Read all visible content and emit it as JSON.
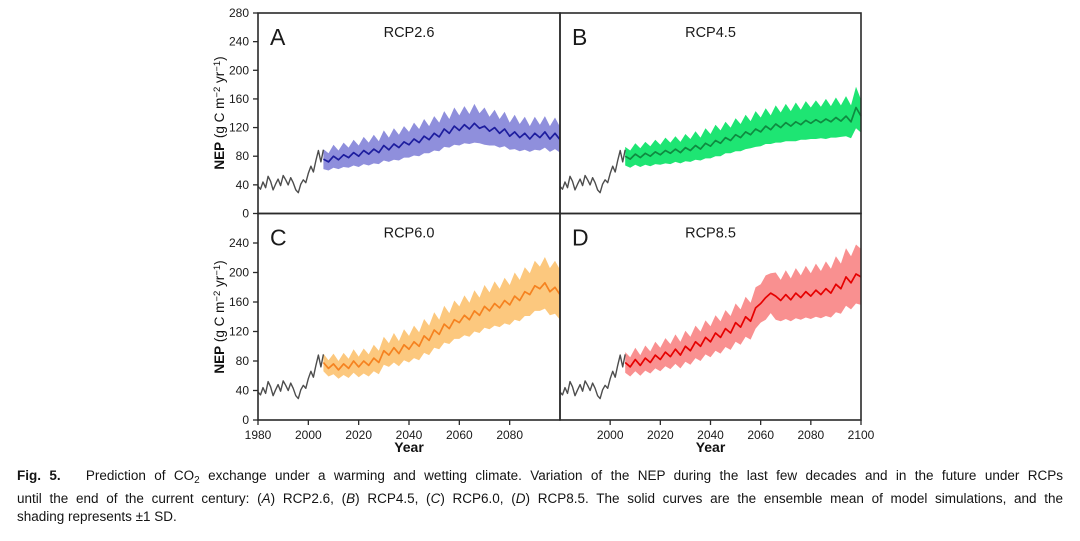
{
  "chart_data": {
    "type": "line",
    "title": "",
    "xlabel": "Year",
    "ylabel": "NEP (g C m−2 yr−1)",
    "ylabel_parts": [
      {
        "t": "NEP",
        "b": true
      },
      {
        "t": " (g C m"
      },
      {
        "t": "−2",
        "sup": true
      },
      {
        "t": " yr"
      },
      {
        "t": "−1",
        "sup": true
      },
      {
        "t": ")"
      }
    ],
    "xlim": [
      1980,
      2100
    ],
    "ylim": [
      0,
      280
    ],
    "x_ticks": [
      1980,
      2000,
      2020,
      2040,
      2060,
      2080,
      2100
    ],
    "y_ticks": [
      0,
      40,
      80,
      120,
      160,
      200,
      240,
      280
    ],
    "grid": false,
    "legend": "none",
    "axis_color": "#2a2a2a",
    "historical": {
      "name": "historical NEP",
      "color": "#4d4d4d",
      "x_start": 1980,
      "x_step": 1,
      "y": [
        38,
        34,
        44,
        36,
        52,
        45,
        33,
        41,
        48,
        39,
        53,
        47,
        40,
        50,
        43,
        33,
        29,
        41,
        47,
        43,
        56,
        66,
        58,
        74,
        88,
        72,
        89
      ]
    },
    "panels": [
      {
        "label": "A",
        "title": "RCP2.6",
        "line_color": "#1d1d9e",
        "band_color": "#8f8fdc",
        "band_meaning": "±1 SD",
        "future": {
          "x_start": 2006,
          "x_step": 2,
          "mean": [
            76,
            72,
            80,
            75,
            82,
            78,
            85,
            80,
            88,
            83,
            90,
            85,
            95,
            89,
            97,
            92,
            100,
            96,
            104,
            99,
            108,
            103,
            112,
            107,
            118,
            112,
            122,
            116,
            124,
            118,
            126,
            119,
            122,
            115,
            120,
            112,
            118,
            108,
            114,
            106,
            112,
            104,
            112,
            106,
            114,
            104,
            112,
            103
          ],
          "sd": [
            14,
            12,
            16,
            13,
            17,
            14,
            18,
            15,
            19,
            16,
            20,
            16,
            21,
            17,
            22,
            18,
            22,
            18,
            23,
            19,
            24,
            19,
            24,
            20,
            25,
            20,
            26,
            21,
            26,
            21,
            27,
            21,
            26,
            20,
            25,
            20,
            24,
            19,
            24,
            19,
            23,
            18,
            23,
            18,
            22,
            18,
            22,
            18
          ]
        }
      },
      {
        "label": "B",
        "title": "RCP4.5",
        "line_color": "#0f8a40",
        "band_color": "#1ee573",
        "band_meaning": "±1 SD",
        "future": {
          "x_start": 2006,
          "x_step": 2,
          "mean": [
            80,
            76,
            83,
            78,
            84,
            80,
            86,
            82,
            88,
            84,
            90,
            85,
            92,
            88,
            95,
            90,
            98,
            94,
            102,
            98,
            106,
            102,
            110,
            106,
            114,
            110,
            118,
            114,
            122,
            117,
            125,
            120,
            127,
            122,
            128,
            124,
            130,
            126,
            131,
            127,
            132,
            128,
            134,
            129,
            136,
            128,
            148,
            136
          ],
          "sd": [
            13,
            12,
            15,
            13,
            16,
            14,
            17,
            14,
            18,
            15,
            18,
            15,
            19,
            16,
            20,
            16,
            21,
            17,
            22,
            18,
            22,
            18,
            23,
            19,
            24,
            19,
            25,
            20,
            25,
            20,
            26,
            21,
            26,
            21,
            27,
            21,
            27,
            22,
            27,
            22,
            28,
            22,
            28,
            22,
            28,
            23,
            29,
            23
          ]
        }
      },
      {
        "label": "C",
        "title": "RCP6.0",
        "line_color": "#f58220",
        "band_color": "#fcc87e",
        "band_meaning": "±1 SD",
        "future": {
          "x_start": 2006,
          "x_step": 2,
          "mean": [
            78,
            70,
            76,
            68,
            76,
            70,
            80,
            72,
            80,
            74,
            84,
            78,
            94,
            88,
            98,
            90,
            102,
            96,
            106,
            100,
            114,
            108,
            122,
            116,
            130,
            124,
            136,
            132,
            142,
            136,
            148,
            142,
            154,
            148,
            158,
            152,
            162,
            156,
            168,
            162,
            174,
            170,
            182,
            178,
            186,
            174,
            180,
            170
          ],
          "sd": [
            12,
            11,
            14,
            12,
            15,
            13,
            16,
            14,
            17,
            15,
            18,
            16,
            19,
            16,
            20,
            17,
            21,
            18,
            22,
            19,
            23,
            20,
            24,
            20,
            25,
            21,
            26,
            22,
            27,
            23,
            28,
            24,
            29,
            25,
            30,
            26,
            31,
            27,
            32,
            28,
            33,
            29,
            34,
            30,
            35,
            32,
            36,
            34
          ]
        }
      },
      {
        "label": "D",
        "title": "RCP8.5",
        "line_color": "#e60000",
        "band_color": "#f99090",
        "band_meaning": "±1 SD",
        "future": {
          "x_start": 2006,
          "x_step": 2,
          "mean": [
            78,
            72,
            82,
            74,
            84,
            78,
            88,
            82,
            92,
            86,
            96,
            88,
            100,
            94,
            106,
            100,
            112,
            106,
            118,
            112,
            124,
            118,
            132,
            126,
            140,
            134,
            152,
            158,
            166,
            172,
            168,
            162,
            170,
            163,
            172,
            166,
            174,
            168,
            176,
            170,
            178,
            172,
            184,
            178,
            194,
            186,
            198,
            194
          ],
          "sd": [
            14,
            13,
            16,
            14,
            17,
            15,
            18,
            16,
            19,
            17,
            20,
            18,
            21,
            19,
            22,
            20,
            23,
            21,
            24,
            22,
            25,
            23,
            26,
            24,
            27,
            25,
            28,
            26,
            30,
            27,
            32,
            28,
            33,
            29,
            34,
            30,
            35,
            31,
            36,
            32,
            37,
            33,
            38,
            34,
            39,
            36,
            40,
            38
          ]
        }
      }
    ]
  },
  "caption": {
    "lines": [
      [
        {
          "t": "Fig. 5.",
          "b": true
        },
        {
          "t": "   Prediction of CO"
        },
        {
          "t": "2",
          "sub": true
        },
        {
          "t": " exchange under a warming and wetting climate. Variation of the NEP during the last few decades and in the future under RCPs"
        }
      ],
      [
        {
          "t": "until the end of the current century: ("
        },
        {
          "t": "A",
          "i": true
        },
        {
          "t": ") RCP2.6, ("
        },
        {
          "t": "B",
          "i": true
        },
        {
          "t": ") RCP4.5, ("
        },
        {
          "t": "C",
          "i": true
        },
        {
          "t": ") RCP6.0, ("
        },
        {
          "t": "D",
          "i": true
        },
        {
          "t": ") RCP8.5. The solid curves are the ensemble mean of model simulations, and the"
        }
      ],
      [
        {
          "t": "shading represents ±1 SD."
        }
      ]
    ]
  }
}
